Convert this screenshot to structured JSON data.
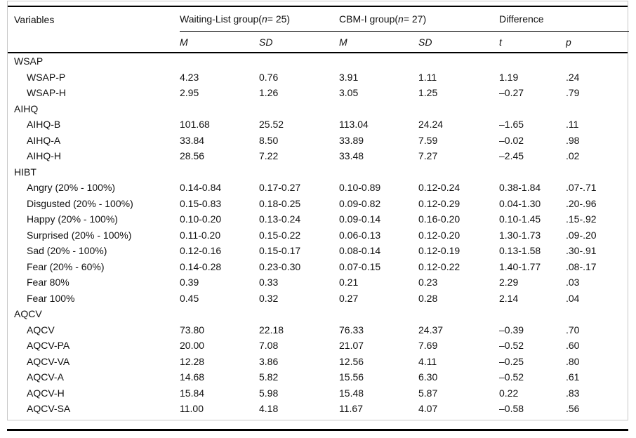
{
  "colors": {
    "rule": "#000000",
    "box_border": "#c8c8c8",
    "text": "#111111"
  },
  "table": {
    "header": {
      "variables": "Variables",
      "group1": {
        "prefix": "Waiting-List group(",
        "n": "n",
        "suffix": " = 25)"
      },
      "group2": {
        "prefix": "CBM-I group(",
        "n": "n",
        "suffix": " = 27)"
      },
      "group3": {
        "label": "Difference"
      },
      "subcols": [
        "M",
        "SD",
        "M",
        "SD",
        "t",
        "p"
      ]
    },
    "rows": [
      {
        "type": "section",
        "label": "WSAP"
      },
      {
        "type": "data",
        "label": "WSAP-P",
        "values": [
          "4.23",
          "0.76",
          "3.91",
          "1.11",
          "1.19",
          ".24"
        ]
      },
      {
        "type": "data",
        "label": "WSAP-H",
        "values": [
          "2.95",
          "1.26",
          "3.05",
          "1.25",
          "–0.27",
          ".79"
        ]
      },
      {
        "type": "section",
        "label": "AIHQ"
      },
      {
        "type": "data",
        "label": "AIHQ-B",
        "values": [
          "101.68",
          "25.52",
          "113.04",
          "24.24",
          "–1.65",
          ".11"
        ]
      },
      {
        "type": "data",
        "label": "AIHQ-A",
        "values": [
          "33.84",
          "8.50",
          "33.89",
          "7.59",
          "–0.02",
          ".98"
        ]
      },
      {
        "type": "data",
        "label": "AIHQ-H",
        "values": [
          "28.56",
          "7.22",
          "33.48",
          "7.27",
          "–2.45",
          ".02"
        ]
      },
      {
        "type": "section",
        "label": "HIBT"
      },
      {
        "type": "data",
        "label": "Angry (20% - 100%)",
        "values": [
          "0.14-0.84",
          "0.17-0.27",
          "0.10-0.89",
          "0.12-0.24",
          "0.38-1.84",
          ".07-.71"
        ]
      },
      {
        "type": "data",
        "label": "Disgusted (20% - 100%)",
        "values": [
          "0.15-0.83",
          "0.18-0.25",
          "0.09-0.82",
          "0.12-0.29",
          "0.04-1.30",
          ".20-.96"
        ]
      },
      {
        "type": "data",
        "label": "Happy (20% - 100%)",
        "values": [
          "0.10-0.20",
          "0.13-0.24",
          "0.09-0.14",
          "0.16-0.20",
          "0.10-1.45",
          ".15-.92"
        ]
      },
      {
        "type": "data",
        "label": "Surprised (20% - 100%)",
        "values": [
          "0.11-0.20",
          "0.15-0.22",
          "0.06-0.13",
          "0.12-0.20",
          "1.30-1.73",
          ".09-.20"
        ]
      },
      {
        "type": "data",
        "label": "Sad (20% - 100%)",
        "values": [
          "0.12-0.16",
          "0.15-0.17",
          "0.08-0.14",
          "0.12-0.19",
          "0.13-1.58",
          ".30-.91"
        ]
      },
      {
        "type": "data",
        "label": "Fear (20% - 60%)",
        "values": [
          "0.14-0.28",
          "0.23-0.30",
          "0.07-0.15",
          "0.12-0.22",
          "1.40-1.77",
          ".08-.17"
        ]
      },
      {
        "type": "data",
        "label": "Fear 80%",
        "values": [
          "0.39",
          "0.33",
          "0.21",
          "0.23",
          "2.29",
          ".03"
        ]
      },
      {
        "type": "data",
        "label": "Fear 100%",
        "values": [
          "0.45",
          "0.32",
          "0.27",
          "0.28",
          "2.14",
          ".04"
        ]
      },
      {
        "type": "section",
        "label": "AQCV"
      },
      {
        "type": "data",
        "label": "AQCV",
        "values": [
          "73.80",
          "22.18",
          "76.33",
          "24.37",
          "–0.39",
          ".70"
        ]
      },
      {
        "type": "data",
        "label": "AQCV-PA",
        "values": [
          "20.00",
          "7.08",
          "21.07",
          "7.69",
          "–0.52",
          ".60"
        ]
      },
      {
        "type": "data",
        "label": "AQCV-VA",
        "values": [
          "12.28",
          "3.86",
          "12.56",
          "4.11",
          "–0.25",
          ".80"
        ]
      },
      {
        "type": "data",
        "label": "AQCV-A",
        "values": [
          "14.68",
          "5.82",
          "15.56",
          "6.30",
          "–0.52",
          ".61"
        ]
      },
      {
        "type": "data",
        "label": "AQCV-H",
        "values": [
          "15.84",
          "5.98",
          "15.48",
          "5.87",
          "0.22",
          ".83"
        ]
      },
      {
        "type": "data",
        "label": "AQCV-SA",
        "values": [
          "11.00",
          "4.18",
          "11.67",
          "4.07",
          "–0.58",
          ".56"
        ]
      }
    ]
  }
}
